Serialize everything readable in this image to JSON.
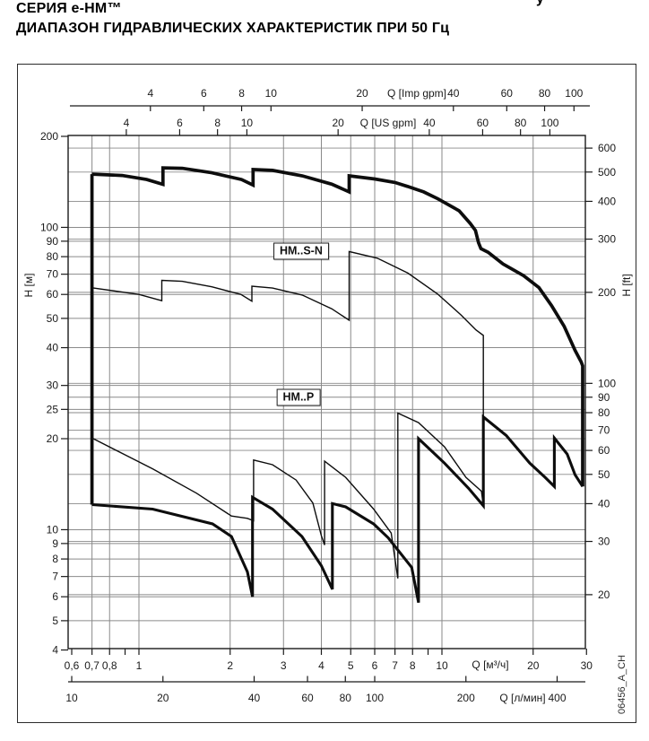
{
  "title": {
    "line1": "СЕРИЯ  e-HM™",
    "line2": "ДИАПАЗОН ГИДРАВЛИЧЕСКИХ ХАРАКТЕРИСТИК ПРИ 50 Гц"
  },
  "page_fragment": "у",
  "watermark": "06456_A_CH",
  "colors": {
    "curve": "#0d0d0d",
    "grid": "#8a8a8a",
    "axis": "#1a1a1a",
    "box_border": "#2b2b2b",
    "background": "#ffffff"
  },
  "chart_data": {
    "type": "line",
    "log_log": true,
    "x_range_m3h": [
      0.585,
      29.9
    ],
    "y_range_m": [
      4.1,
      200
    ],
    "grid": "on",
    "axes": {
      "left": {
        "label": "H [м]",
        "ticks": [
          200,
          100,
          90,
          80,
          70,
          60,
          50,
          40,
          30,
          25,
          20,
          10,
          9,
          8,
          7,
          6,
          5,
          4
        ]
      },
      "right": {
        "label": "H [ft]",
        "ticks": [
          600,
          500,
          400,
          300,
          200,
          100,
          90,
          80,
          70,
          60,
          50,
          40,
          30,
          20
        ]
      },
      "bottom_m3h": {
        "label": "Q [м³/ч]",
        "ticks": [
          {
            "q": 0.6,
            "t": "0,6"
          },
          {
            "q": 0.7,
            "t": "0,7"
          },
          {
            "q": 0.8,
            "t": "0,8"
          },
          {
            "q": 0.9,
            "t": ""
          },
          {
            "q": 1,
            "t": "1"
          },
          {
            "q": 2,
            "t": "2"
          },
          {
            "q": 3,
            "t": "3"
          },
          {
            "q": 4,
            "t": "4"
          },
          {
            "q": 5,
            "t": "5"
          },
          {
            "q": 6,
            "t": "6"
          },
          {
            "q": 7,
            "t": "7"
          },
          {
            "q": 8,
            "t": "8"
          },
          {
            "q": 9,
            "t": ""
          },
          {
            "q": 10,
            "t": "10"
          },
          {
            "q": 20,
            "t": "20"
          },
          {
            "q": 30,
            "t": "30"
          }
        ]
      },
      "bottom_lmin": {
        "label": "Q [л/мин]",
        "ticks": [
          {
            "q": 0.6,
            "t": "10"
          },
          {
            "q": 1.2,
            "t": "20"
          },
          {
            "q": 2.4,
            "t": "40"
          },
          {
            "q": 3.6,
            "t": "60"
          },
          {
            "q": 4.8,
            "t": "80"
          },
          {
            "q": 6,
            "t": "100"
          },
          {
            "q": 12,
            "t": "200"
          },
          {
            "q": 24,
            "t": "400"
          }
        ]
      },
      "top_us": {
        "label": "Q [US gpm]",
        "ticks": [
          {
            "q": 0.9085,
            "t": "4"
          },
          {
            "q": 1.3627,
            "t": "6"
          },
          {
            "q": 1.817,
            "t": "8"
          },
          {
            "q": 2.2712,
            "t": "10"
          },
          {
            "q": 4.5424,
            "t": "20"
          },
          {
            "q": 9.0849,
            "t": "40"
          },
          {
            "q": 13.6273,
            "t": "60"
          },
          {
            "q": 18.1697,
            "t": "80"
          },
          {
            "q": 22.7121,
            "t": "100"
          }
        ]
      },
      "top_imp": {
        "label": "Q [Imp gpm]",
        "ticks": [
          {
            "q": 1.091,
            "t": "4"
          },
          {
            "q": 1.6366,
            "t": "6"
          },
          {
            "q": 2.1821,
            "t": "8"
          },
          {
            "q": 2.7276,
            "t": "10"
          },
          {
            "q": 5.4553,
            "t": "20"
          },
          {
            "q": 10.9105,
            "t": "40"
          },
          {
            "q": 16.3658,
            "t": "60"
          },
          {
            "q": 21.8211,
            "t": "80"
          },
          {
            "q": 27.2763,
            "t": "100"
          }
        ]
      }
    },
    "gridlines": {
      "x_m3h": [
        0.7,
        0.8,
        1,
        2,
        3,
        4,
        5,
        6,
        7,
        8,
        10,
        20
      ],
      "y_m": [
        100,
        90,
        80,
        70,
        60,
        50,
        40,
        30,
        25,
        20,
        10,
        9,
        8,
        7,
        6,
        5
      ],
      "y_ft": [
        600,
        500,
        400,
        300,
        200,
        100,
        90,
        80,
        70,
        60,
        50,
        40,
        30,
        20
      ]
    },
    "annotations": [
      {
        "id": "label-hm-sn",
        "text": "HM..S-N",
        "q": 3.43,
        "h": 83.5
      },
      {
        "id": "label-hm-p",
        "text": "HM..P",
        "q": 3.36,
        "h": 27.4
      }
    ],
    "series": [
      {
        "name": "family-left-boundary",
        "stroke": "thick",
        "points": [
          [
            0.7,
            12.1
          ],
          [
            0.7,
            150
          ]
        ]
      },
      {
        "name": "hm-sn-top-envelope",
        "stroke": "thick",
        "points": [
          [
            0.7,
            150
          ],
          [
            0.88,
            148.5
          ],
          [
            1.06,
            144
          ],
          [
            1.2,
            138.8
          ],
          [
            1.2,
            157.3
          ],
          [
            1.39,
            156.8
          ],
          [
            1.74,
            151.5
          ],
          [
            2.18,
            144
          ],
          [
            2.38,
            138
          ],
          [
            2.38,
            155.4
          ],
          [
            2.76,
            154.4
          ],
          [
            3.46,
            148.1
          ],
          [
            4.33,
            139
          ],
          [
            4.94,
            131
          ],
          [
            4.94,
            148.1
          ],
          [
            6,
            144.6
          ],
          [
            7,
            140.8
          ],
          [
            7.7,
            136.6
          ],
          [
            8.7,
            131
          ],
          [
            9.7,
            124.3
          ],
          [
            10.8,
            117
          ],
          [
            11.4,
            113.4
          ],
          [
            12.4,
            103
          ],
          [
            12.9,
            97.7
          ],
          [
            13.2,
            89
          ],
          [
            13.45,
            85
          ],
          [
            14.2,
            82.7
          ],
          [
            15.9,
            75.7
          ],
          [
            18.6,
            69.2
          ],
          [
            20.9,
            63.2
          ],
          [
            23,
            55.1
          ],
          [
            25.3,
            47.1
          ],
          [
            27.5,
            39.2
          ],
          [
            28.8,
            35.9
          ],
          [
            29.15,
            34.8
          ],
          [
            29.15,
            13.9
          ]
        ]
      },
      {
        "name": "hm-sn-bottom-envelope",
        "stroke": "thin",
        "points": [
          [
            0.7,
            63.1
          ],
          [
            1.0,
            60
          ],
          [
            1.19,
            57.2
          ],
          [
            1.19,
            66.8
          ],
          [
            1.39,
            66.3
          ],
          [
            1.74,
            63.6
          ],
          [
            2.17,
            60
          ],
          [
            2.36,
            57
          ],
          [
            2.36,
            63.9
          ],
          [
            2.76,
            63
          ],
          [
            3.46,
            59.7
          ],
          [
            4.33,
            53.8
          ],
          [
            4.94,
            49.3
          ],
          [
            4.94,
            83.2
          ],
          [
            6.12,
            79.1
          ],
          [
            7.72,
            70.6
          ],
          [
            9.66,
            60.3
          ],
          [
            11.56,
            51.3
          ],
          [
            12.95,
            45.8
          ],
          [
            13.7,
            43.9
          ],
          [
            13.7,
            12.0
          ]
        ]
      },
      {
        "name": "hm-p-top-envelope",
        "stroke": "thin",
        "points": [
          [
            0.7,
            20.1
          ],
          [
            1.11,
            15.9
          ],
          [
            1.55,
            13.2
          ],
          [
            2.02,
            11.1
          ],
          [
            2.28,
            10.9
          ],
          [
            2.39,
            10.7
          ],
          [
            2.39,
            17.0
          ],
          [
            2.76,
            16.4
          ],
          [
            3.3,
            14.6
          ],
          [
            3.75,
            12.25
          ],
          [
            4.0,
            9.55
          ],
          [
            4.1,
            8.9
          ],
          [
            4.1,
            16.85
          ],
          [
            4.81,
            14.9
          ],
          [
            5.95,
            11.7
          ],
          [
            6.8,
            9.75
          ],
          [
            7.15,
            6.9
          ],
          [
            7.15,
            24.3
          ],
          [
            8.37,
            22.6
          ],
          [
            10.2,
            18.8
          ],
          [
            12.0,
            14.9
          ],
          [
            13.5,
            13.4
          ],
          [
            13.7,
            12.0
          ]
        ]
      },
      {
        "name": "hm-p-bottom-envelope",
        "stroke": "thick2",
        "points": [
          [
            0.7,
            12.1
          ],
          [
            1.11,
            11.7
          ],
          [
            1.75,
            10.45
          ],
          [
            2.02,
            9.5
          ],
          [
            2.28,
            7.25
          ],
          [
            2.37,
            6.0
          ],
          [
            2.37,
            12.8
          ],
          [
            2.76,
            11.7
          ],
          [
            3.45,
            9.5
          ],
          [
            4.0,
            7.6
          ],
          [
            4.35,
            6.35
          ],
          [
            4.35,
            12.2
          ],
          [
            4.81,
            11.9
          ],
          [
            5.95,
            10.45
          ],
          [
            6.65,
            9.4
          ],
          [
            7.95,
            7.5
          ],
          [
            8.37,
            5.74
          ],
          [
            8.37,
            20.0
          ],
          [
            10.2,
            16.6
          ],
          [
            12.25,
            13.7
          ],
          [
            13.7,
            12.0
          ],
          [
            13.7,
            23.6
          ],
          [
            16.3,
            20.5
          ],
          [
            19.5,
            16.6
          ],
          [
            21.9,
            14.9
          ],
          [
            23.5,
            13.9
          ],
          [
            23.5,
            20.1
          ],
          [
            25.9,
            17.8
          ],
          [
            27.5,
            15.2
          ],
          [
            29.15,
            13.9
          ]
        ]
      }
    ]
  }
}
